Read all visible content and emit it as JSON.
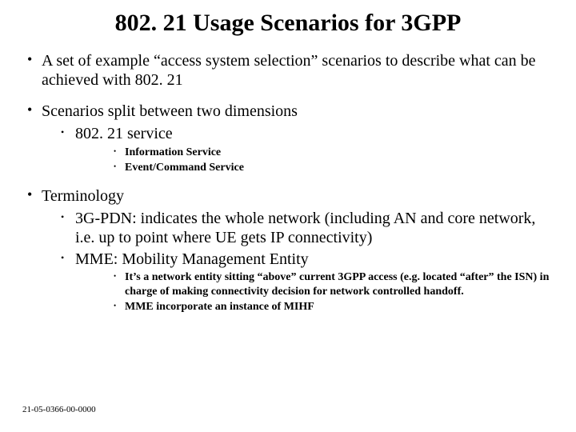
{
  "colors": {
    "background": "#ffffff",
    "text": "#000000"
  },
  "title": "802. 21 Usage Scenarios for 3GPP",
  "bullets": {
    "b1": "A set of example “access system selection” scenarios to describe what can be achieved with 802. 21",
    "b2": "Scenarios split between two dimensions",
    "b2_1": "802. 21 service",
    "b2_1_1": "Information Service",
    "b2_1_2": "Event/Command Service",
    "b3": "Terminology",
    "b3_1": "3G-PDN: indicates the whole network (including AN and core network, i.e. up to point where UE gets IP connectivity)",
    "b3_2": "MME: Mobility Management Entity",
    "b3_2_1": "It’s a network entity sitting “above” current 3GPP access (e.g. located “after” the ISN) in charge of making connectivity decision for network controlled handoff.",
    "b3_2_2": "MME incorporate an instance of MIHF"
  },
  "footer": "21-05-0366-00-0000"
}
